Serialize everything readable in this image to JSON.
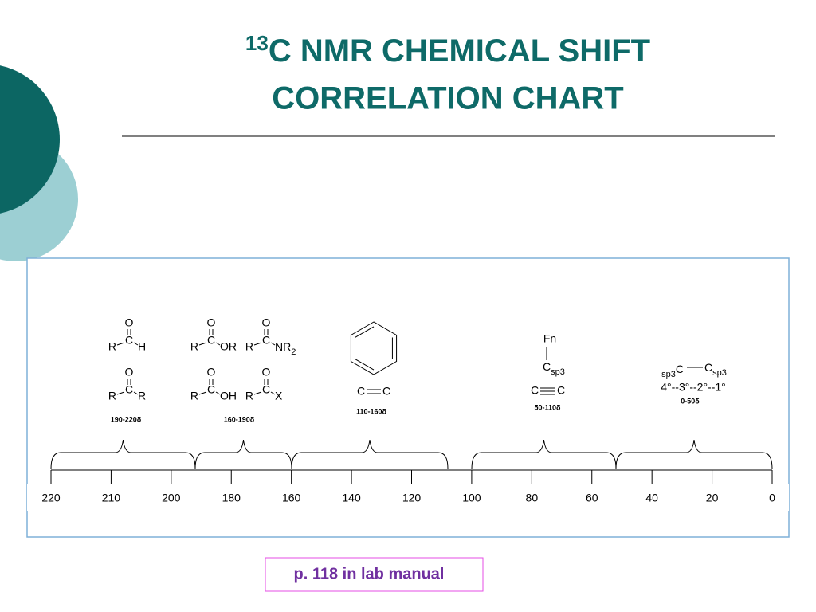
{
  "title": {
    "superscript": "13",
    "line1": "C NMR CHEMICAL SHIFT",
    "line2": "CORRELATION CHART"
  },
  "scale_ticks": [
    "220",
    "210",
    "200",
    "180",
    "160",
    "140",
    "120",
    "100",
    "80",
    "60",
    "40",
    "20",
    "0"
  ],
  "groups": [
    {
      "range": "190-220δ",
      "carbonyls": [
        {
          "top": "O",
          "center": "C",
          "left": "R",
          "right": "H"
        },
        {
          "top": "O",
          "center": "C",
          "left": "R",
          "right": "R"
        }
      ]
    },
    {
      "range": "160-190δ",
      "carbonyls": [
        {
          "top": "O",
          "center": "C",
          "left": "R",
          "right": "OR"
        },
        {
          "top": "O",
          "center": "C",
          "left": "R",
          "right": "NR",
          "right_sub": "2"
        },
        {
          "top": "O",
          "center": "C",
          "left": "R",
          "right": "OH"
        },
        {
          "top": "O",
          "center": "C",
          "left": "R",
          "right": "X"
        }
      ]
    },
    {
      "range": "110-160δ",
      "alkene": [
        "C",
        "C"
      ]
    },
    {
      "range": "50-110δ",
      "substituent": "Fn",
      "carbon": "C",
      "carbon_sub": "sp3",
      "alkyne": [
        "C",
        "C"
      ]
    },
    {
      "range": "0-50δ",
      "left_sub": "sp3",
      "left": "C",
      "right": "C",
      "right_sub": "sp3",
      "order": "4°--3°--2°--1°"
    }
  ],
  "footer": "p. 118 in lab manual"
}
